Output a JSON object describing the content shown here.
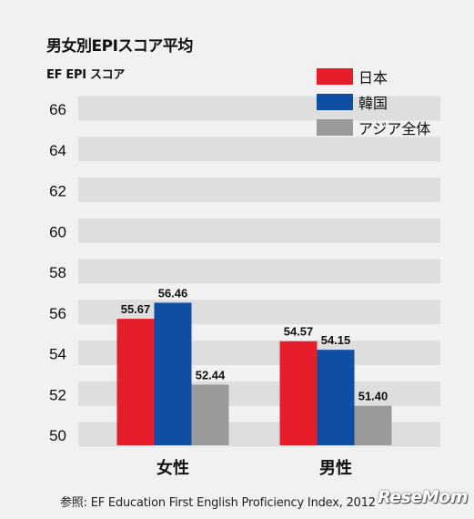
{
  "chart_data": {
    "type": "bar",
    "title": "男女別EPIスコア平均",
    "ylabel": "EF EPI スコア",
    "xlabel": "",
    "categories": [
      "女性",
      "男性"
    ],
    "series": [
      {
        "name": "日本",
        "color": "#e61e2b",
        "values": [
          55.67,
          54.57
        ]
      },
      {
        "name": "韓国",
        "color": "#0e4fa3",
        "values": [
          56.46,
          54.15
        ]
      },
      {
        "name": "アジア全体",
        "color": "#9a9a9a",
        "values": [
          52.44,
          51.4
        ]
      }
    ],
    "data_labels": [
      [
        "55.67",
        "56.46",
        "52.44"
      ],
      [
        "54.57",
        "54.15",
        "51.40"
      ]
    ],
    "ylim": [
      50,
      66
    ],
    "yticks": [
      "66",
      "64",
      "62",
      "60",
      "58",
      "56",
      "54",
      "52",
      "50"
    ],
    "legend": "top-right",
    "grid": true
  },
  "source": "参照: EF Education First English Proficiency Index, 2012",
  "watermark": "ReseMom"
}
